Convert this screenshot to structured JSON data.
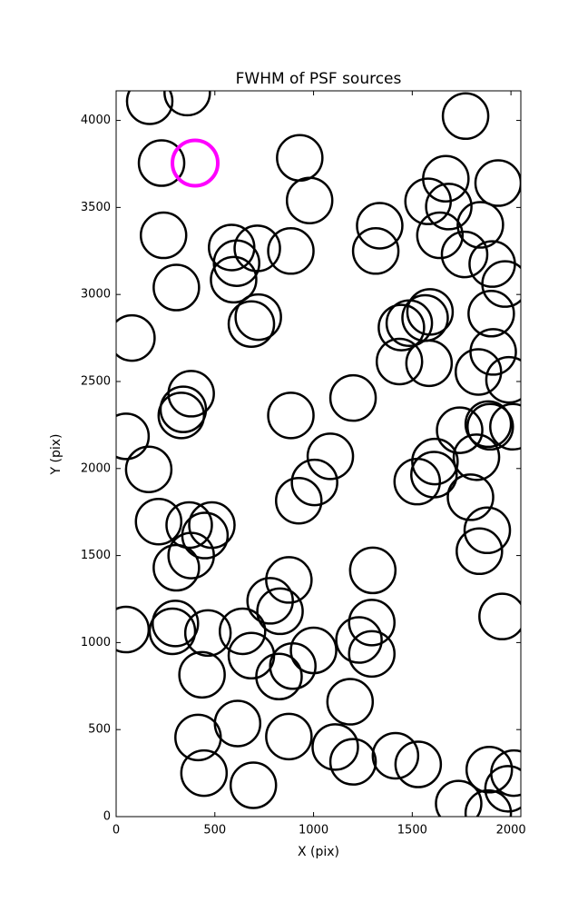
{
  "chart_data": {
    "type": "scatter",
    "title": "FWHM of PSF sources",
    "x_label": "X (pix)",
    "y_label": "Y (pix)",
    "xlim": [
      0,
      2050
    ],
    "ylim": [
      0,
      4170
    ],
    "xticks": [
      0,
      500,
      1000,
      1500,
      2000
    ],
    "yticks": [
      0,
      500,
      1000,
      1500,
      2000,
      2500,
      3000,
      3500,
      4000
    ],
    "marker": "open-circle",
    "series": [
      {
        "color": "#000000",
        "x": [
          170,
          360,
          1770,
          230,
          930,
          980,
          1670,
          1580,
          1935,
          1685,
          1335,
          1845,
          240,
          1640,
          1315,
          585,
          715,
          885,
          1765,
          1905,
          610,
          595,
          305,
          1970,
          720,
          685,
          1590,
          1565,
          1900,
          80,
          1445,
          1485,
          1910,
          1435,
          1585,
          1835,
          1990,
          380,
          340,
          330,
          1200,
          885,
          50,
          1740,
          1885,
          1895,
          2010,
          1085,
          1615,
          1825,
          165,
          1005,
          1525,
          1610,
          925,
          1795,
          215,
          485,
          370,
          450,
          1880,
          380,
          1840,
          305,
          1300,
          875,
          780,
          830,
          1955,
          50,
          300,
          285,
          465,
          1295,
          1230,
          640,
          685,
          1000,
          1295,
          895,
          825,
          435,
          1185,
          615,
          415,
          875,
          1110,
          1200,
          1415,
          1530,
          445,
          1890,
          2015,
          1985,
          695,
          1735,
          1885
        ],
        "values": [
          4110,
          4160,
          4025,
          3755,
          3785,
          3540,
          3665,
          3535,
          3640,
          3505,
          3395,
          3400,
          3340,
          3340,
          3250,
          3270,
          3265,
          3250,
          3230,
          3175,
          3180,
          3085,
          3040,
          3060,
          2870,
          2830,
          2900,
          2865,
          2890,
          2750,
          2810,
          2835,
          2670,
          2615,
          2605,
          2555,
          2510,
          2430,
          2340,
          2305,
          2405,
          2305,
          2185,
          2220,
          2255,
          2240,
          2240,
          2070,
          2040,
          2065,
          1995,
          1920,
          1925,
          1965,
          1815,
          1835,
          1695,
          1675,
          1675,
          1615,
          1645,
          1500,
          1525,
          1430,
          1415,
          1360,
          1240,
          1180,
          1150,
          1075,
          1110,
          1065,
          1055,
          1115,
          1015,
          1065,
          925,
          955,
          935,
          865,
          805,
          815,
          660,
          535,
          455,
          460,
          400,
          315,
          350,
          300,
          250,
          270,
          250,
          160,
          180,
          75,
          20
        ]
      },
      {
        "color": "#ff00ff",
        "x": [
          400
        ],
        "values": [
          3755
        ]
      }
    ]
  }
}
